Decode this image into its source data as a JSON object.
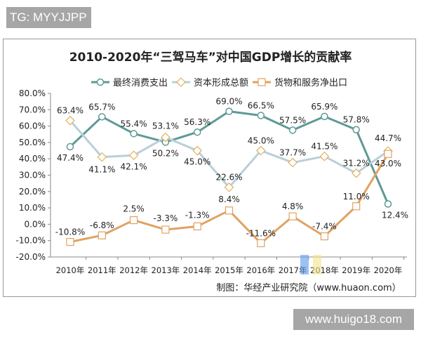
{
  "watermark_top": "TG: MYYJJPP",
  "watermark_bottom": "www.huigo18.com",
  "watermark_logo": "华经情报网 huaon.com",
  "source": "制图：华经产业研究院（www.huaon.com）",
  "chart_data": {
    "type": "line",
    "title": "2010-2020年“三驾马车”对中国GDP增长的贡献率",
    "xlabel": "",
    "ylabel": "",
    "categories": [
      "2010年",
      "2011年",
      "2012年",
      "2013年",
      "2014年",
      "2015年",
      "2016年",
      "2017年",
      "2018年",
      "2019年",
      "2020年"
    ],
    "ylim": [
      -20,
      80
    ],
    "yticks": [
      "80.0%",
      "70.0%",
      "60.0%",
      "50.0%",
      "40.0%",
      "30.0%",
      "20.0%",
      "10.0%",
      "0.0%",
      "-10.0%",
      "-20.0%"
    ],
    "grid": false,
    "legend_position": "top",
    "series": [
      {
        "name": "最终消费支出",
        "color": "#5e9a96",
        "marker": "circle",
        "values": [
          47.4,
          65.7,
          55.4,
          50.2,
          56.3,
          69.0,
          66.5,
          57.5,
          65.9,
          57.8,
          12.4
        ]
      },
      {
        "name": "资本形成总额",
        "color": "#b9cfd9",
        "marker": "diamond",
        "values": [
          63.4,
          41.1,
          42.1,
          53.1,
          45.0,
          22.6,
          45.0,
          37.7,
          41.5,
          31.2,
          44.7
        ]
      },
      {
        "name": "货物和服务净出口",
        "color": "#e0a263",
        "marker": "square",
        "values": [
          -10.8,
          -6.8,
          2.5,
          -3.3,
          -1.3,
          8.4,
          -11.6,
          4.8,
          -7.4,
          11.0,
          43.0
        ]
      }
    ]
  }
}
